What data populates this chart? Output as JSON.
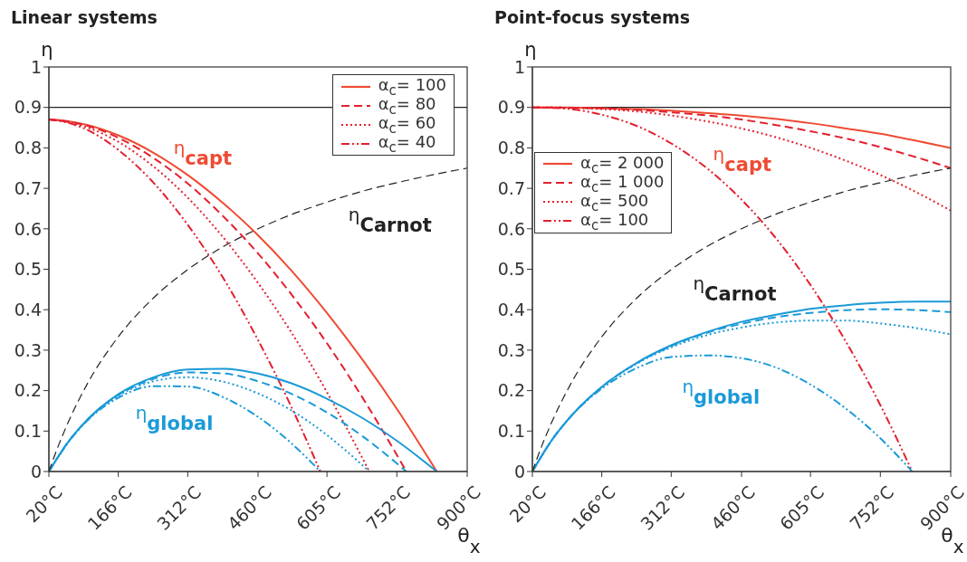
{
  "chart_data": [
    {
      "type": "line",
      "title": "Linear systems",
      "xlabel": "θ$_{x}$",
      "ylabel": "η",
      "xlim": [
        20,
        900
      ],
      "xticks": [
        {
          "value": 20,
          "label": "20°C"
        },
        {
          "value": 166,
          "label": "166°C"
        },
        {
          "value": 312,
          "label": "312°C"
        },
        {
          "value": 460,
          "label": "460°C"
        },
        {
          "value": 605,
          "label": "605°C"
        },
        {
          "value": 752,
          "label": "752°C"
        },
        {
          "value": 900,
          "label": "900°C"
        }
      ],
      "ylim": [
        0,
        1
      ],
      "yticks": [
        0,
        0.1,
        0.2,
        0.3,
        0.4,
        0.5,
        0.6,
        0.7,
        0.8,
        0.9,
        1
      ],
      "legend": "top right",
      "ref_lines": [
        {
          "axis": "y",
          "value": 0.9,
          "color": "#222222"
        }
      ],
      "annotations": [
        "η$_{capt}$",
        "η$_{Carnot}$",
        "η$_{global}$"
      ],
      "series": [
        {
          "name": "α$_{c}$= 100",
          "color": "#ee4b33",
          "line_style": "solid",
          "x": [
            20,
            60,
            100,
            166,
            240,
            312,
            390,
            460,
            530,
            605,
            680,
            752,
            836
          ],
          "values": [
            0.87,
            0.866,
            0.857,
            0.831,
            0.788,
            0.733,
            0.66,
            0.584,
            0.497,
            0.392,
            0.276,
            0.155,
            0
          ]
        },
        {
          "name": "α$_{c}$= 80",
          "color": "#e2202e",
          "line_style": "dashed",
          "x": [
            20,
            60,
            100,
            166,
            240,
            312,
            390,
            460,
            530,
            605,
            680,
            752,
            772
          ],
          "values": [
            0.87,
            0.865,
            0.855,
            0.825,
            0.775,
            0.712,
            0.627,
            0.539,
            0.438,
            0.317,
            0.182,
            0.041,
            0
          ]
        },
        {
          "name": "α$_{c}$= 60",
          "color": "#e2202e",
          "line_style": "dotted",
          "x": [
            20,
            60,
            100,
            166,
            240,
            312,
            390,
            460,
            530,
            605,
            680,
            694
          ],
          "values": [
            0.87,
            0.864,
            0.851,
            0.815,
            0.754,
            0.677,
            0.574,
            0.466,
            0.344,
            0.196,
            0.032,
            0
          ]
        },
        {
          "name": "α$_{c}$= 40",
          "color": "#e2202e",
          "line_style": "dashdot",
          "x": [
            20,
            60,
            100,
            166,
            240,
            312,
            390,
            460,
            530,
            591
          ],
          "values": [
            0.87,
            0.862,
            0.845,
            0.795,
            0.714,
            0.61,
            0.472,
            0.325,
            0.16,
            0
          ]
        },
        {
          "color": "#1b9ad8",
          "line_style": "solid",
          "x": [
            20,
            60,
            100,
            166,
            240,
            312,
            390,
            460,
            530,
            605,
            680,
            752,
            836
          ],
          "values": [
            0,
            0.072,
            0.127,
            0.191,
            0.233,
            0.252,
            0.254,
            0.242,
            0.218,
            0.18,
            0.132,
            0.076,
            0
          ]
        },
        {
          "color": "#1b9ad8",
          "line_style": "dashed",
          "x": [
            20,
            60,
            100,
            166,
            240,
            312,
            390,
            460,
            530,
            605,
            680,
            752,
            772
          ],
          "values": [
            0,
            0.072,
            0.127,
            0.189,
            0.229,
            0.245,
            0.242,
            0.223,
            0.192,
            0.146,
            0.087,
            0.02,
            0
          ]
        },
        {
          "color": "#1b9ad8",
          "line_style": "dotted",
          "x": [
            20,
            60,
            100,
            166,
            240,
            312,
            390,
            460,
            530,
            605,
            680,
            694
          ],
          "values": [
            0,
            0.072,
            0.126,
            0.187,
            0.223,
            0.233,
            0.221,
            0.193,
            0.151,
            0.09,
            0.015,
            0
          ]
        },
        {
          "color": "#1b9ad8",
          "line_style": "dashdot",
          "x": [
            20,
            60,
            100,
            166,
            240,
            312,
            390,
            460,
            530,
            591
          ],
          "values": [
            0,
            0.071,
            0.125,
            0.182,
            0.211,
            0.21,
            0.182,
            0.135,
            0.07,
            0
          ]
        },
        {
          "color": "#222222",
          "line_style": "dashed",
          "x": [
            20,
            40,
            60,
            100,
            166,
            240,
            312,
            390,
            460,
            530,
            605,
            680,
            752,
            830,
            900
          ],
          "values": [
            0,
            0.064,
            0.12,
            0.215,
            0.333,
            0.429,
            0.499,
            0.558,
            0.6,
            0.635,
            0.666,
            0.693,
            0.714,
            0.734,
            0.75
          ]
        }
      ]
    },
    {
      "type": "line",
      "title": "Point-focus systems",
      "xlabel": "θ$_{x}$",
      "ylabel": "η",
      "xlim": [
        20,
        900
      ],
      "xticks": [
        {
          "value": 20,
          "label": "20°C"
        },
        {
          "value": 166,
          "label": "166°C"
        },
        {
          "value": 312,
          "label": "312°C"
        },
        {
          "value": 460,
          "label": "460°C"
        },
        {
          "value": 605,
          "label": "605°C"
        },
        {
          "value": 752,
          "label": "752°C"
        },
        {
          "value": 900,
          "label": "900°C"
        }
      ],
      "ylim": [
        0,
        1
      ],
      "yticks": [
        0,
        0.1,
        0.2,
        0.3,
        0.4,
        0.5,
        0.6,
        0.7,
        0.8,
        0.9,
        1
      ],
      "legend": "left",
      "ref_lines": [
        {
          "axis": "y",
          "value": 0.9,
          "color": "#222222"
        }
      ],
      "annotations": [
        "η$_{capt}$",
        "η$_{Carnot}$",
        "η$_{global}$"
      ],
      "series": [
        {
          "name": "α$_{c}$= 2 000",
          "color": "#ee4b33",
          "line_style": "solid",
          "x": [
            20,
            60,
            100,
            166,
            240,
            312,
            390,
            460,
            530,
            605,
            680,
            752,
            830,
            900
          ],
          "values": [
            0.9,
            0.9,
            0.9,
            0.898,
            0.896,
            0.892,
            0.886,
            0.88,
            0.872,
            0.861,
            0.848,
            0.835,
            0.817,
            0.8
          ]
        },
        {
          "name": "α$_{c}$= 1 000",
          "color": "#e2202e",
          "line_style": "dashed",
          "x": [
            20,
            60,
            100,
            166,
            240,
            312,
            390,
            460,
            530,
            605,
            680,
            752,
            830,
            900
          ],
          "values": [
            0.9,
            0.9,
            0.899,
            0.898,
            0.894,
            0.888,
            0.88,
            0.87,
            0.857,
            0.841,
            0.823,
            0.802,
            0.776,
            0.75
          ]
        },
        {
          "name": "α$_{c}$= 500",
          "color": "#e2202e",
          "line_style": "dotted",
          "x": [
            20,
            60,
            100,
            166,
            240,
            312,
            390,
            460,
            530,
            605,
            680,
            752,
            830,
            900
          ],
          "values": [
            0.9,
            0.9,
            0.899,
            0.896,
            0.89,
            0.88,
            0.865,
            0.848,
            0.827,
            0.8,
            0.768,
            0.733,
            0.689,
            0.645
          ]
        },
        {
          "name": "α$_{c}$= 100",
          "color": "#e2202e",
          "line_style": "dashdot",
          "x": [
            20,
            60,
            100,
            166,
            240,
            312,
            390,
            460,
            530,
            605,
            680,
            752,
            819
          ],
          "values": [
            0.9,
            0.899,
            0.896,
            0.882,
            0.854,
            0.811,
            0.747,
            0.672,
            0.58,
            0.461,
            0.32,
            0.164,
            0
          ]
        },
        {
          "color": "#1b9ad8",
          "line_style": "solid",
          "x": [
            20,
            60,
            100,
            166,
            240,
            312,
            390,
            460,
            530,
            605,
            680,
            752,
            830,
            900
          ],
          "values": [
            0,
            0.076,
            0.135,
            0.209,
            0.269,
            0.312,
            0.346,
            0.37,
            0.387,
            0.402,
            0.411,
            0.417,
            0.42,
            0.42
          ]
        },
        {
          "color": "#1b9ad8",
          "line_style": "dashed",
          "x": [
            20,
            60,
            100,
            166,
            240,
            312,
            390,
            460,
            530,
            605,
            680,
            752,
            830,
            900
          ],
          "values": [
            0,
            0.076,
            0.135,
            0.209,
            0.268,
            0.31,
            0.344,
            0.365,
            0.381,
            0.392,
            0.399,
            0.401,
            0.399,
            0.394
          ]
        },
        {
          "color": "#1b9ad8",
          "line_style": "dotted",
          "x": [
            20,
            60,
            100,
            166,
            240,
            312,
            390,
            460,
            530,
            605,
            680,
            752,
            830,
            900
          ],
          "values": [
            0,
            0.076,
            0.135,
            0.209,
            0.267,
            0.307,
            0.338,
            0.356,
            0.368,
            0.373,
            0.373,
            0.366,
            0.354,
            0.339
          ]
        },
        {
          "color": "#1b9ad8",
          "line_style": "dashdot",
          "x": [
            20,
            60,
            100,
            166,
            240,
            312,
            390,
            460,
            530,
            605,
            680,
            752,
            819
          ],
          "values": [
            0,
            0.076,
            0.135,
            0.205,
            0.256,
            0.283,
            0.287,
            0.28,
            0.258,
            0.215,
            0.155,
            0.082,
            0
          ]
        },
        {
          "color": "#222222",
          "line_style": "dashed",
          "x": [
            20,
            40,
            60,
            100,
            166,
            240,
            312,
            390,
            460,
            530,
            605,
            680,
            752,
            830,
            900
          ],
          "values": [
            0,
            0.064,
            0.12,
            0.215,
            0.333,
            0.429,
            0.499,
            0.558,
            0.6,
            0.635,
            0.666,
            0.693,
            0.714,
            0.734,
            0.75
          ]
        }
      ]
    }
  ]
}
